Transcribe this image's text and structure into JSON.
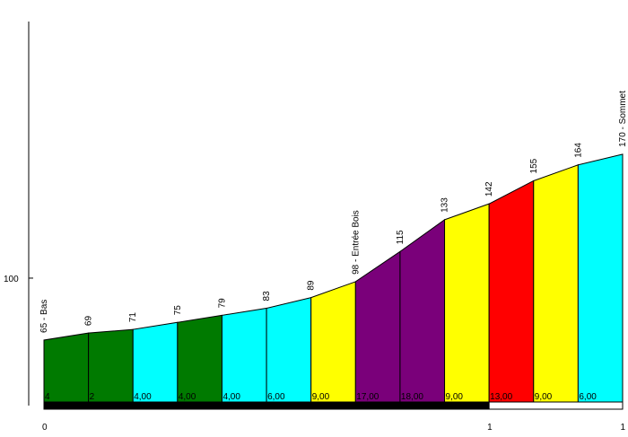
{
  "chart_data": {
    "type": "area",
    "title": "",
    "xlabel": "",
    "ylabel": "",
    "xlim": [
      0,
      1.3
    ],
    "ylim": [
      30,
      245
    ],
    "y_ticks": [
      {
        "value": 100,
        "label": "100"
      }
    ],
    "x_ticks": [
      {
        "value": 0,
        "label": "0"
      },
      {
        "value": 1,
        "label": "1"
      },
      {
        "value": 1.3,
        "label": "1"
      }
    ],
    "points": [
      {
        "x": 0.0,
        "elevation": 65,
        "label": "65 - Bas"
      },
      {
        "x": 0.1,
        "elevation": 69,
        "label": "69"
      },
      {
        "x": 0.2,
        "elevation": 71,
        "label": "71"
      },
      {
        "x": 0.3,
        "elevation": 75,
        "label": "75"
      },
      {
        "x": 0.4,
        "elevation": 79,
        "label": "79"
      },
      {
        "x": 0.5,
        "elevation": 83,
        "label": "83"
      },
      {
        "x": 0.6,
        "elevation": 89,
        "label": "89"
      },
      {
        "x": 0.7,
        "elevation": 98,
        "label": "98 - Entrée Bois"
      },
      {
        "x": 0.8,
        "elevation": 115,
        "label": "115"
      },
      {
        "x": 0.9,
        "elevation": 133,
        "label": "133"
      },
      {
        "x": 1.0,
        "elevation": 142,
        "label": "142"
      },
      {
        "x": 1.1,
        "elevation": 155,
        "label": "155"
      },
      {
        "x": 1.2,
        "elevation": 164,
        "label": "164"
      },
      {
        "x": 1.3,
        "elevation": 170,
        "label": "170 - Sommet"
      }
    ],
    "segments": [
      {
        "gradient": "4",
        "color": "#007a00"
      },
      {
        "gradient": "2",
        "color": "#007a00"
      },
      {
        "gradient": "4,00",
        "color": "#00ffff"
      },
      {
        "gradient": "4,00",
        "color": "#007a00"
      },
      {
        "gradient": "4,00",
        "color": "#00ffff"
      },
      {
        "gradient": "6,00",
        "color": "#00ffff"
      },
      {
        "gradient": "9,00",
        "color": "#ffff00"
      },
      {
        "gradient": "17,00",
        "color": "#7a007a"
      },
      {
        "gradient": "18,00",
        "color": "#7a007a"
      },
      {
        "gradient": "9,00",
        "color": "#ffff00"
      },
      {
        "gradient": "13,00",
        "color": "#ff0000"
      },
      {
        "gradient": "9,00",
        "color": "#ffff00"
      },
      {
        "gradient": "6,00",
        "color": "#00ffff"
      }
    ],
    "distance_bar": [
      {
        "from": 0,
        "to": 1,
        "color": "#000000"
      },
      {
        "from": 1,
        "to": 1.3,
        "color": "#ffffff"
      }
    ]
  }
}
